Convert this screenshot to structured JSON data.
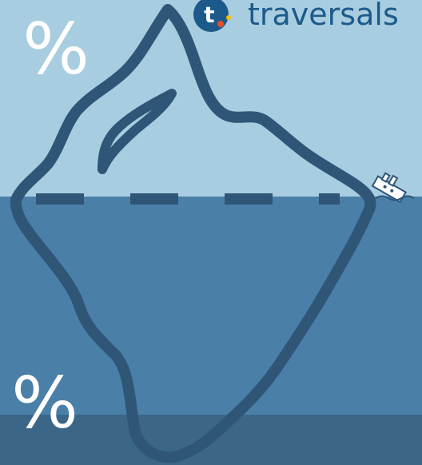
{
  "top_label": "%",
  "bottom_label": "%",
  "logo": {
    "text": "traversals"
  }
}
